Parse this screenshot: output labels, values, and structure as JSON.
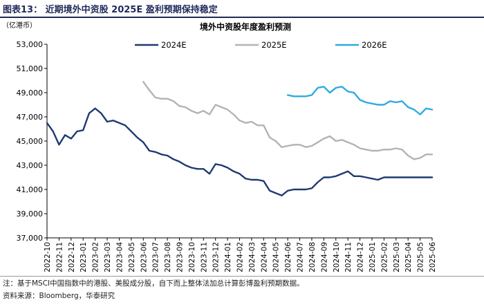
{
  "figure": {
    "caption": "图表13：  近期境外中资股 2025E 盈利预期保持稳定",
    "note": "注：基于MSCI中国指数中的港股、美股成分股，自下而上整体法加总计算彭博盈利预期数据。",
    "source": "资料来源：Bloomberg，华泰研究"
  },
  "chart_data": {
    "type": "line",
    "title": "境外中资股年度盈利预测",
    "ylabel": "（亿港币）",
    "xlabel": "",
    "ylim": [
      37000,
      53000
    ],
    "yticks": [
      37000,
      39000,
      41000,
      43000,
      45000,
      47000,
      49000,
      51000,
      53000
    ],
    "ytick_labels": [
      "37,000",
      "39,000",
      "41,000",
      "43,000",
      "45,000",
      "47,000",
      "49,000",
      "51,000",
      "53,000"
    ],
    "x_start": "2022-10",
    "x_end": "2025-06",
    "x_ticks": [
      "2022-10",
      "2022-11",
      "2022-12",
      "2023-01",
      "2023-02",
      "2023-03",
      "2023-04",
      "2023-05",
      "2023-06",
      "2023-07",
      "2023-08",
      "2023-09",
      "2023-10",
      "2023-11",
      "2023-12",
      "2024-01",
      "2024-02",
      "2024-03",
      "2024-04",
      "2024-05",
      "2024-06",
      "2024-07",
      "2024-08",
      "2024-09",
      "2024-10",
      "2024-11",
      "2024-12",
      "2025-01",
      "2025-02",
      "2025-03",
      "2025-04",
      "2025-05",
      "2025-06"
    ],
    "grid": false,
    "legend": "top",
    "series": [
      {
        "name": "2024E",
        "color": "#1f3a72",
        "x": [
          "2022-10",
          "2022-10.5",
          "2022-11",
          "2022-11.5",
          "2022-12",
          "2022-12.5",
          "2023-01",
          "2023-01.5",
          "2023-02",
          "2023-02.5",
          "2023-03",
          "2023-03.5",
          "2023-04",
          "2023-04.5",
          "2023-05",
          "2023-05.5",
          "2023-06",
          "2023-06.5",
          "2023-07",
          "2023-07.5",
          "2023-08",
          "2023-08.5",
          "2023-09",
          "2023-09.5",
          "2023-10",
          "2023-10.5",
          "2023-11",
          "2023-11.5",
          "2023-12",
          "2023-12.5",
          "2024-01",
          "2024-01.5",
          "2024-02",
          "2024-02.5",
          "2024-03",
          "2024-03.5",
          "2024-04",
          "2024-04.5",
          "2024-05",
          "2024-05.5",
          "2024-06",
          "2024-06.5",
          "2024-07",
          "2024-07.5",
          "2024-08",
          "2024-08.5",
          "2024-09",
          "2024-09.5",
          "2024-10",
          "2024-10.5",
          "2024-11",
          "2024-11.5",
          "2024-12",
          "2024-12.5",
          "2025-01",
          "2025-01.5",
          "2025-02",
          "2025-02.5",
          "2025-03",
          "2025-03.5",
          "2025-04",
          "2025-04.5",
          "2025-05",
          "2025-05.5",
          "2025-06"
        ],
        "values": [
          46500,
          45800,
          44700,
          45500,
          45200,
          45800,
          45900,
          47300,
          47700,
          47300,
          46600,
          46700,
          46500,
          46300,
          45800,
          45300,
          44900,
          44200,
          44100,
          43900,
          43800,
          43500,
          43300,
          43000,
          42800,
          42700,
          42700,
          42300,
          43100,
          43000,
          42800,
          42500,
          42300,
          41900,
          41800,
          41800,
          41700,
          40900,
          40700,
          40500,
          40900,
          41000,
          41000,
          41000,
          41100,
          41600,
          42000,
          42000,
          42100,
          42300,
          42500,
          42100,
          42100,
          42000,
          41900,
          41800,
          42000,
          42000,
          42000,
          42000,
          42000,
          42000,
          42000,
          42000,
          42000
        ]
      },
      {
        "name": "2025E",
        "color": "#b3b3b3",
        "x": [
          "2023-06",
          "2023-06.5",
          "2023-07",
          "2023-07.5",
          "2023-08",
          "2023-08.5",
          "2023-09",
          "2023-09.5",
          "2023-10",
          "2023-10.5",
          "2023-11",
          "2023-11.5",
          "2023-12",
          "2023-12.5",
          "2024-01",
          "2024-01.5",
          "2024-02",
          "2024-02.5",
          "2024-03",
          "2024-03.5",
          "2024-04",
          "2024-04.5",
          "2024-05",
          "2024-05.5",
          "2024-06",
          "2024-06.5",
          "2024-07",
          "2024-07.5",
          "2024-08",
          "2024-08.5",
          "2024-09",
          "2024-09.5",
          "2024-10",
          "2024-10.5",
          "2024-11",
          "2024-11.5",
          "2024-12",
          "2024-12.5",
          "2025-01",
          "2025-01.5",
          "2025-02",
          "2025-02.5",
          "2025-03",
          "2025-03.5",
          "2025-04",
          "2025-04.5",
          "2025-05",
          "2025-05.5",
          "2025-06"
        ],
        "values": [
          49900,
          49200,
          48600,
          48500,
          48500,
          48300,
          47900,
          47800,
          47500,
          47300,
          47500,
          47200,
          48000,
          47800,
          47600,
          47200,
          46700,
          46500,
          46600,
          46300,
          46300,
          45300,
          45000,
          44500,
          44600,
          44700,
          44700,
          44500,
          44600,
          44900,
          45200,
          45400,
          45000,
          45100,
          44900,
          44700,
          44400,
          44300,
          44200,
          44200,
          44300,
          44300,
          44400,
          44300,
          43800,
          43500,
          43600,
          43900,
          43900
        ]
      },
      {
        "name": "2026E",
        "color": "#2eaae1",
        "x": [
          "2024-06",
          "2024-06.5",
          "2024-07",
          "2024-07.5",
          "2024-08",
          "2024-08.5",
          "2024-09",
          "2024-09.5",
          "2024-10",
          "2024-10.5",
          "2024-11",
          "2024-11.5",
          "2024-12",
          "2024-12.5",
          "2025-01",
          "2025-01.5",
          "2025-02",
          "2025-02.5",
          "2025-03",
          "2025-03.5",
          "2025-04",
          "2025-04.5",
          "2025-05",
          "2025-05.5",
          "2025-06"
        ],
        "values": [
          48800,
          48700,
          48700,
          48700,
          48800,
          49400,
          49500,
          49000,
          49400,
          49500,
          49100,
          49000,
          48400,
          48200,
          48100,
          48000,
          48000,
          48300,
          48200,
          48300,
          47800,
          47600,
          47200,
          47700,
          47600
        ]
      }
    ]
  }
}
